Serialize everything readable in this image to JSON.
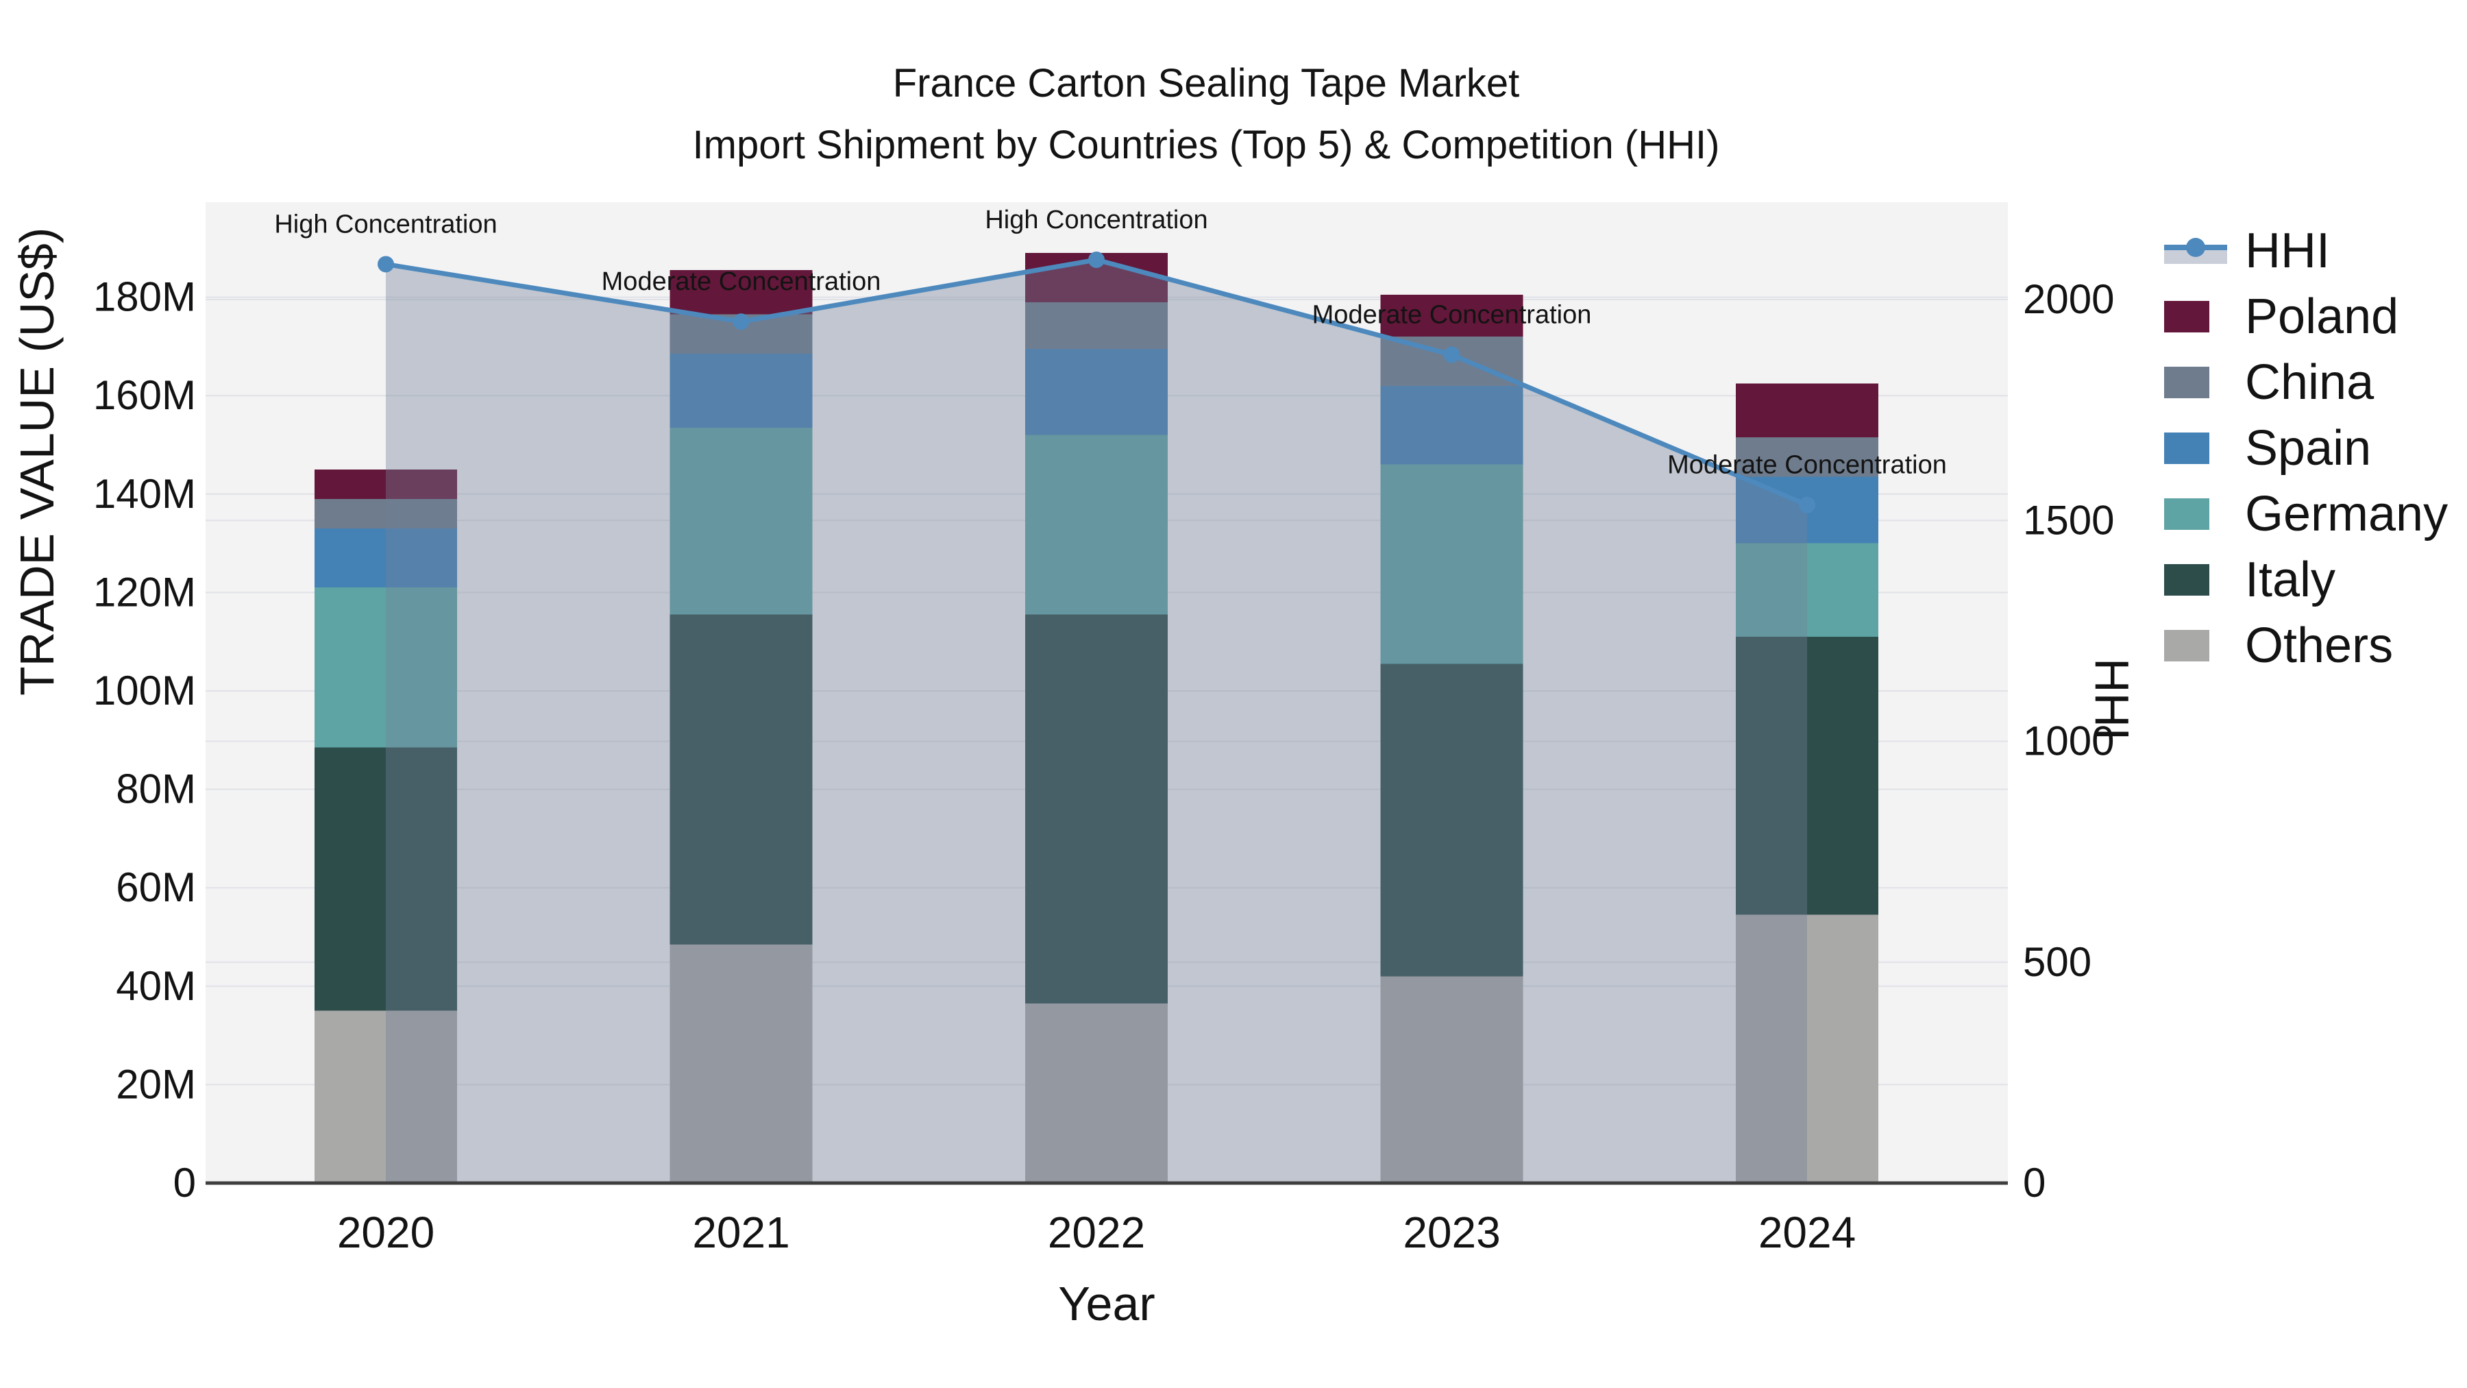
{
  "title": {
    "line1": "France Carton Sealing Tape Market",
    "line2": "Import Shipment by Countries (Top 5) & Competition (HHI)"
  },
  "axes": {
    "y_left_title": "TRADE VALUE (US$)",
    "x_title": "Year",
    "y_right_title": "HHI",
    "y_left_tick_labels": [
      "0",
      "20M",
      "40M",
      "60M",
      "80M",
      "100M",
      "120M",
      "140M",
      "160M",
      "180M"
    ],
    "y_left_tick_values": [
      0,
      20,
      40,
      60,
      80,
      100,
      120,
      140,
      160,
      180
    ],
    "y_right_tick_labels": [
      "0",
      "500",
      "1000",
      "1500",
      "2000"
    ],
    "y_right_tick_values": [
      0,
      500,
      1000,
      1500,
      2000
    ]
  },
  "legend": {
    "entries": [
      {
        "label": "HHI",
        "type": "line",
        "color": "#4d89bd",
        "band_color": "#c9ced9"
      },
      {
        "label": "Poland",
        "type": "swatch",
        "color": "#63173a"
      },
      {
        "label": "China",
        "type": "swatch",
        "color": "#6e7c8d"
      },
      {
        "label": "Spain",
        "type": "swatch",
        "color": "#4482b6"
      },
      {
        "label": "Germany",
        "type": "swatch",
        "color": "#5ea4a4"
      },
      {
        "label": "Italy",
        "type": "swatch",
        "color": "#2d4d4b"
      },
      {
        "label": "Others",
        "type": "swatch",
        "color": "#a9a9a8"
      }
    ]
  },
  "chart_data": {
    "type": "bar",
    "subtype": "stacked-bars-with-line-overlay",
    "categories": [
      "2020",
      "2021",
      "2022",
      "2023",
      "2024"
    ],
    "unit_left": "million US$",
    "unit_right": "HHI index",
    "series": [
      {
        "name": "Others",
        "color": "#a9a9a8",
        "values": [
          35.0,
          48.5,
          36.5,
          42.0,
          54.5
        ]
      },
      {
        "name": "Italy",
        "color": "#2d4d4b",
        "values": [
          53.5,
          67.0,
          79.0,
          63.5,
          56.5
        ]
      },
      {
        "name": "Germany",
        "color": "#5ea4a4",
        "values": [
          32.5,
          38.0,
          36.5,
          40.5,
          19.0
        ]
      },
      {
        "name": "Spain",
        "color": "#4482b6",
        "values": [
          12.0,
          15.0,
          17.5,
          16.0,
          13.5
        ]
      },
      {
        "name": "China",
        "color": "#6e7c8d",
        "values": [
          6.0,
          8.0,
          9.5,
          10.0,
          8.0
        ]
      },
      {
        "name": "Poland",
        "color": "#63173a",
        "values": [
          6.0,
          9.0,
          10.0,
          8.5,
          11.0
        ]
      }
    ],
    "bar_totals": [
      145.0,
      185.5,
      189.0,
      180.5,
      162.5
    ],
    "line_series": {
      "name": "HHI",
      "axis": "right",
      "color": "#4d89bd",
      "area_fill_color": "rgba(114,128,152,0.385)",
      "values": [
        2080,
        1950,
        2090,
        1875,
        1535
      ]
    },
    "annotations": [
      {
        "category": "2020",
        "text": "High Concentration"
      },
      {
        "category": "2021",
        "text": "Moderate Concentration"
      },
      {
        "category": "2022",
        "text": "High Concentration"
      },
      {
        "category": "2023",
        "text": "Moderate Concentration"
      },
      {
        "category": "2024",
        "text": "Moderate Concentration"
      }
    ],
    "ylim_left": [
      0,
      199
    ],
    "ylim_right": [
      0,
      2220
    ],
    "grid": true,
    "legend_position": "right",
    "plot_bg_color": "#f3f3f4",
    "grid_color": "#e0e2e7",
    "baseline_color": "#3f3f3f",
    "text_color": "#131313"
  }
}
